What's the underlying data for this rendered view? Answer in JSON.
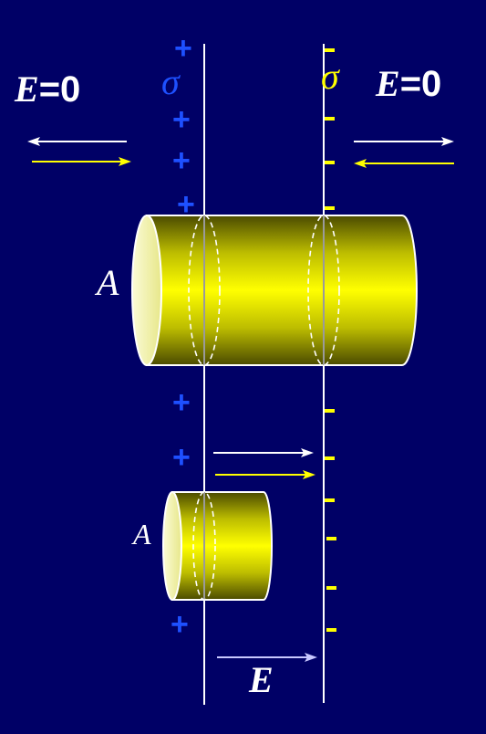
{
  "labels": {
    "e_zero_left_symbol": "E",
    "e_zero_left_value": "=0",
    "e_zero_right_symbol": "E",
    "e_zero_right_value": "=0",
    "sigma_positive": "σ",
    "sigma_negative": "σ",
    "area_large": "A",
    "area_small": "A",
    "field_between": "E"
  },
  "charges": {
    "positive_symbol": "+",
    "negative_symbol": "-"
  },
  "colors": {
    "background": "#000066",
    "positive_charge": "#1e50ff",
    "negative_charge": "#ffff00",
    "cylinder": "#ffff00",
    "arrow_white": "#ffffff",
    "arrow_yellow": "#ffff00"
  }
}
